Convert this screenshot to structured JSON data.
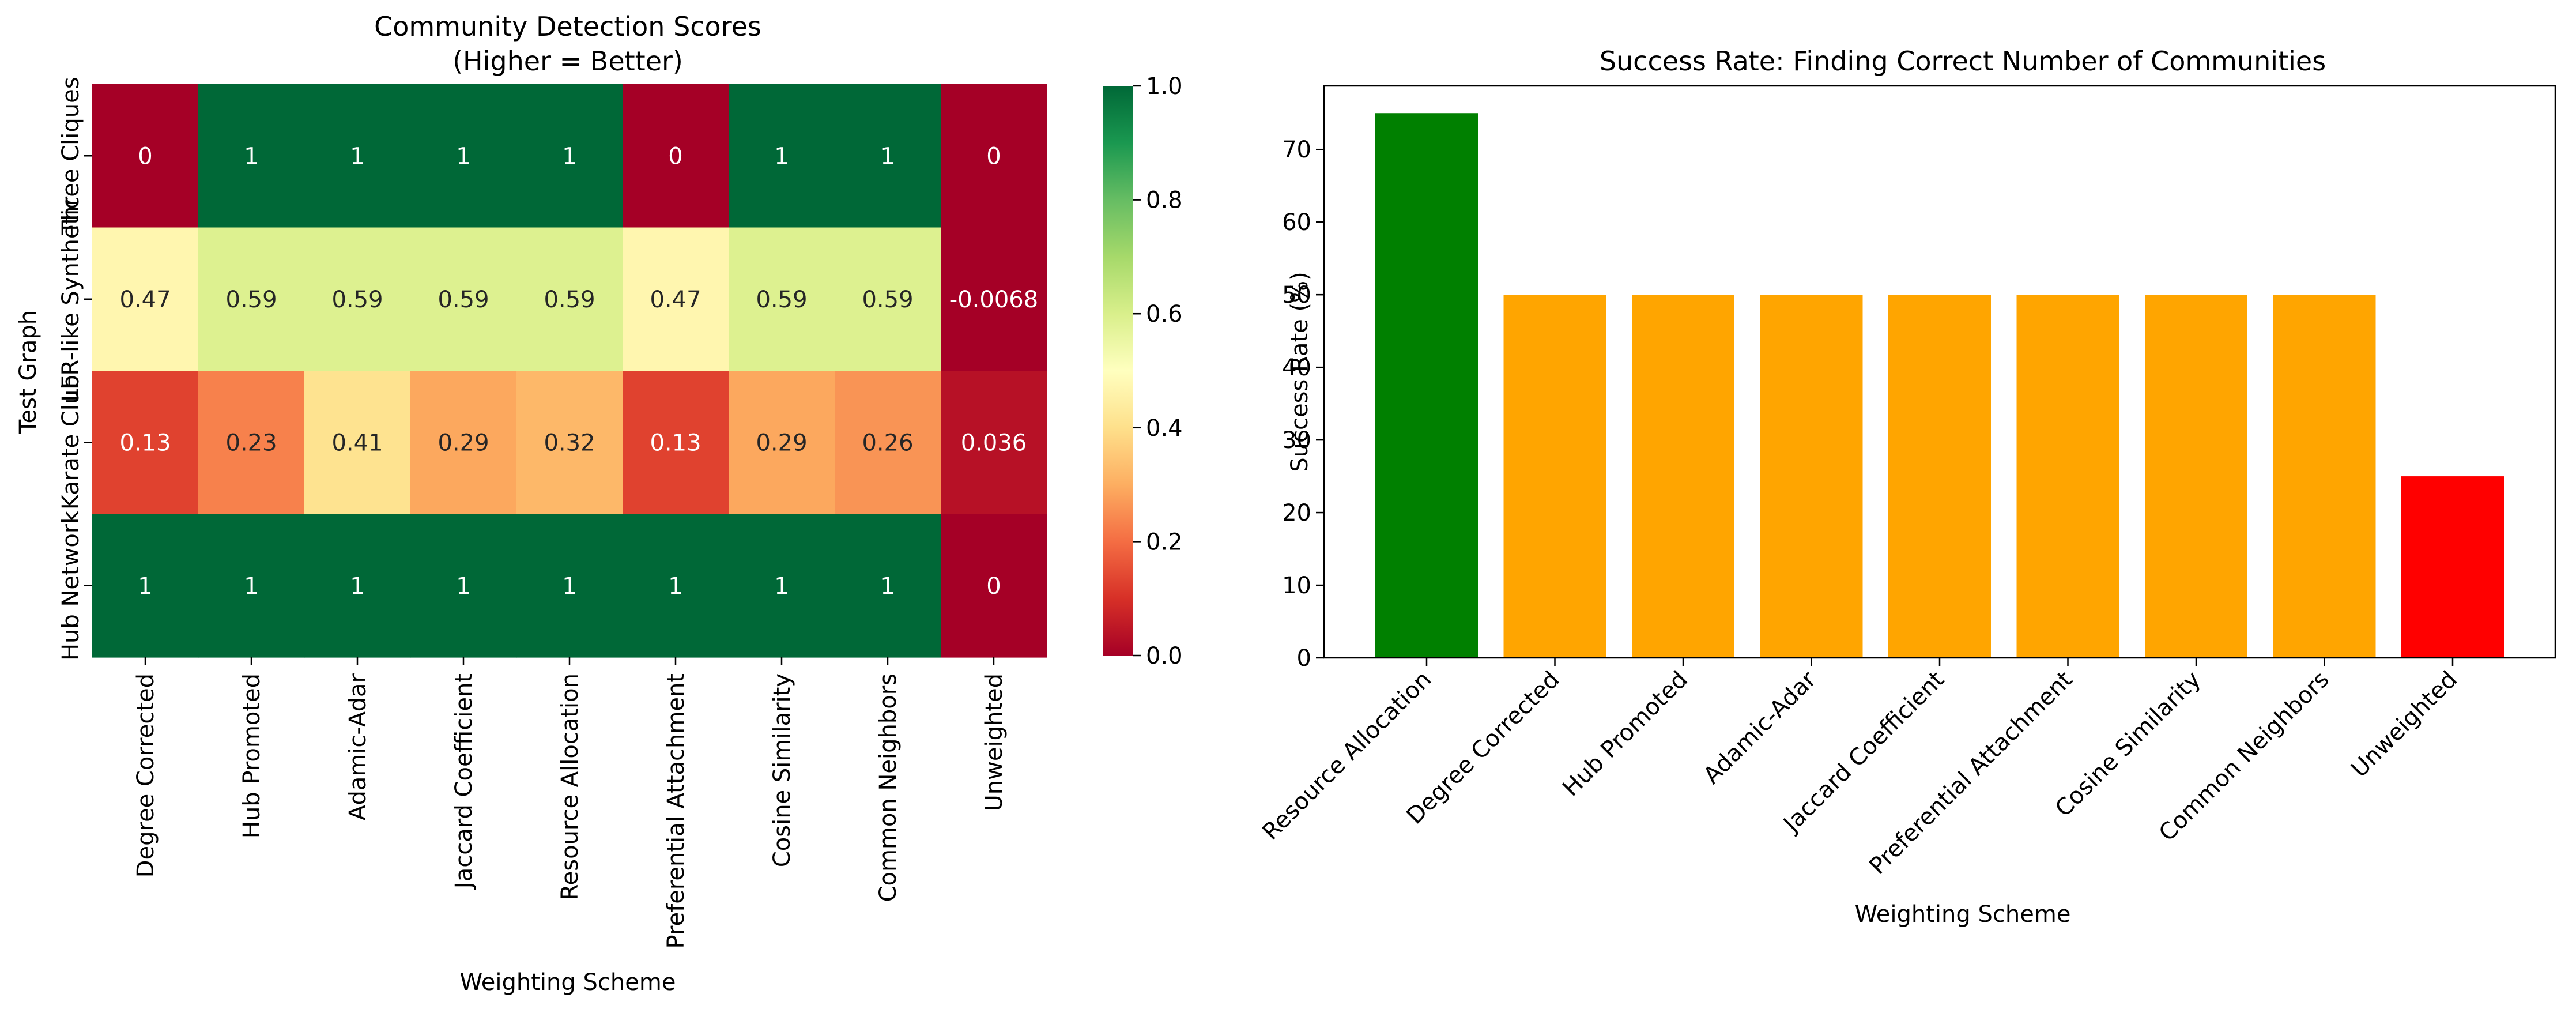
{
  "chart_data": [
    {
      "type": "heatmap",
      "title": "Community Detection Scores",
      "subtitle": "(Higher = Better)",
      "xlabel": "Weighting Scheme",
      "ylabel": "Test Graph",
      "x_categories": [
        "Degree Corrected",
        "Hub Promoted",
        "Adamic-Adar",
        "Jaccard Coefficient",
        "Resource Allocation",
        "Preferential Attachment",
        "Cosine Similarity",
        "Common Neighbors",
        "Unweighted"
      ],
      "y_categories": [
        "Three Cliques",
        "LFR-like Synthetic",
        "Karate Club",
        "Hub Network"
      ],
      "values": [
        [
          0,
          1,
          1,
          1,
          1,
          0,
          1,
          1,
          0
        ],
        [
          0.47,
          0.59,
          0.59,
          0.59,
          0.59,
          0.47,
          0.59,
          0.59,
          -0.0068
        ],
        [
          0.13,
          0.23,
          0.41,
          0.29,
          0.32,
          0.13,
          0.29,
          0.26,
          0.036
        ],
        [
          1,
          1,
          1,
          1,
          1,
          1,
          1,
          1,
          0
        ]
      ],
      "cell_labels": [
        [
          "0",
          "1",
          "1",
          "1",
          "1",
          "0",
          "1",
          "1",
          "0"
        ],
        [
          "0.47",
          "0.59",
          "0.59",
          "0.59",
          "0.59",
          "0.47",
          "0.59",
          "0.59",
          "-0.0068"
        ],
        [
          "0.13",
          "0.23",
          "0.41",
          "0.29",
          "0.32",
          "0.13",
          "0.29",
          "0.26",
          "0.036"
        ],
        [
          "1",
          "1",
          "1",
          "1",
          "1",
          "1",
          "1",
          "1",
          "0"
        ]
      ],
      "colormap": "RdYlGn",
      "vmin": 0,
      "vmax": 1,
      "colorbar_ticks": [
        "0.0",
        "0.2",
        "0.4",
        "0.6",
        "0.8",
        "1.0"
      ]
    },
    {
      "type": "bar",
      "title": "Success Rate: Finding Correct Number of Communities",
      "xlabel": "Weighting Scheme",
      "ylabel": "Success Rate (%)",
      "categories": [
        "Resource Allocation",
        "Degree Corrected",
        "Hub Promoted",
        "Adamic-Adar",
        "Jaccard Coefficient",
        "Preferential Attachment",
        "Cosine Similarity",
        "Common Neighbors",
        "Unweighted"
      ],
      "values": [
        75,
        50,
        50,
        50,
        50,
        50,
        50,
        50,
        25
      ],
      "colors": [
        "#008000",
        "#ffa500",
        "#ffa500",
        "#ffa500",
        "#ffa500",
        "#ffa500",
        "#ffa500",
        "#ffa500",
        "#ff0000"
      ],
      "ylim": [
        0,
        78.75
      ],
      "yticks": [
        0,
        10,
        20,
        30,
        40,
        50,
        60,
        70
      ]
    }
  ]
}
